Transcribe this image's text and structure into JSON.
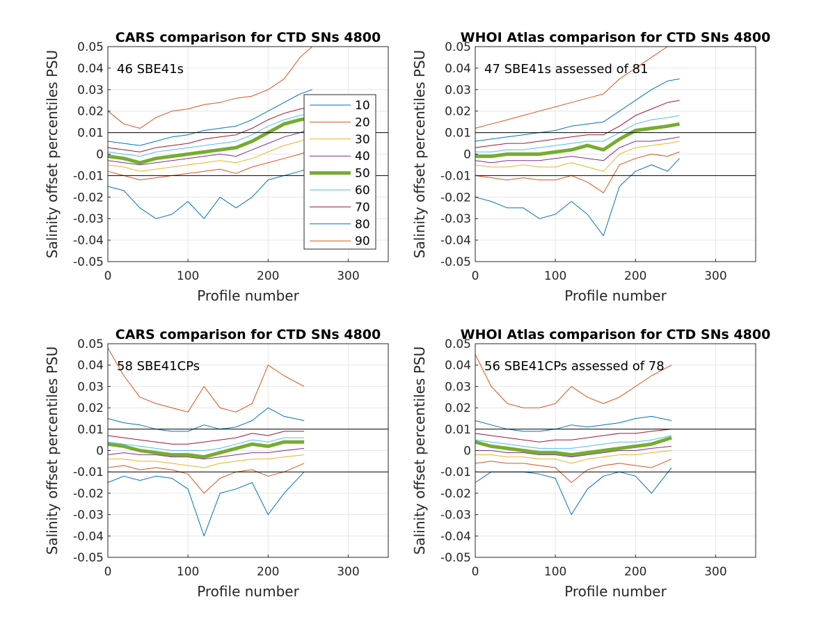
{
  "figure": {
    "colors": {
      "p10": "#0072BD",
      "p20": "#D95319",
      "p30": "#EDB120",
      "p40": "#7E2F8E",
      "p50": "#77AC30",
      "p60": "#4DBEEE",
      "p70": "#A2142F",
      "p80": "#0072BD",
      "p90": "#D95319",
      "grid": "#e6e6e6",
      "axis": "#262626",
      "ref_line": "#000000"
    }
  },
  "chart_data": [
    {
      "type": "line",
      "title": "CARS comparison for CTD SNs 4800",
      "xlabel": "Profile number",
      "ylabel": "Salinity offset percentiles PSU",
      "xlim": [
        0,
        350
      ],
      "ylim": [
        -0.05,
        0.05
      ],
      "xticks": [
        "0",
        "100",
        "200",
        "300"
      ],
      "yticks": [
        "-0.05",
        "-0.04",
        "-0.03",
        "-0.02",
        "-0.01",
        "0",
        "0.01",
        "0.02",
        "0.03",
        "0.04",
        "0.05"
      ],
      "annotation": "46 SBE41s",
      "grid": true,
      "reference_lines": [
        0.01,
        -0.01
      ],
      "legend": {
        "placement": "right",
        "entries": [
          "10",
          "20",
          "30",
          "40",
          "50",
          "60",
          "70",
          "80",
          "90"
        ]
      },
      "x": [
        0,
        20,
        40,
        60,
        80,
        100,
        120,
        140,
        160,
        180,
        200,
        220,
        240,
        255
      ],
      "series": [
        {
          "name": "10",
          "values": [
            -0.015,
            -0.017,
            -0.025,
            -0.03,
            -0.028,
            -0.022,
            -0.03,
            -0.02,
            -0.025,
            -0.02,
            -0.012,
            -0.01,
            -0.008,
            -0.006
          ]
        },
        {
          "name": "20",
          "values": [
            -0.008,
            -0.01,
            -0.012,
            -0.011,
            -0.01,
            -0.009,
            -0.008,
            -0.007,
            -0.009,
            -0.006,
            -0.004,
            -0.002,
            0.0,
            0.002
          ]
        },
        {
          "name": "30",
          "values": [
            -0.005,
            -0.006,
            -0.008,
            -0.007,
            -0.006,
            -0.005,
            -0.004,
            -0.003,
            -0.004,
            -0.002,
            0.001,
            0.004,
            0.006,
            0.008
          ]
        },
        {
          "name": "40",
          "values": [
            -0.003,
            -0.004,
            -0.005,
            -0.004,
            -0.003,
            -0.002,
            -0.001,
            0.0,
            -0.001,
            0.002,
            0.005,
            0.008,
            0.01,
            0.012
          ]
        },
        {
          "name": "50",
          "values": [
            -0.001,
            -0.002,
            -0.004,
            -0.002,
            -0.001,
            0.0,
            0.001,
            0.002,
            0.003,
            0.006,
            0.01,
            0.014,
            0.016,
            0.017
          ]
        },
        {
          "name": "60",
          "values": [
            0.001,
            0.0,
            -0.001,
            0.001,
            0.002,
            0.003,
            0.004,
            0.005,
            0.006,
            0.009,
            0.013,
            0.016,
            0.018,
            0.019
          ]
        },
        {
          "name": "70",
          "values": [
            0.003,
            0.002,
            0.001,
            0.003,
            0.004,
            0.005,
            0.007,
            0.008,
            0.009,
            0.012,
            0.016,
            0.019,
            0.021,
            0.022
          ]
        },
        {
          "name": "80",
          "values": [
            0.006,
            0.005,
            0.004,
            0.006,
            0.008,
            0.009,
            0.011,
            0.012,
            0.013,
            0.016,
            0.02,
            0.024,
            0.028,
            0.03
          ]
        },
        {
          "name": "90",
          "values": [
            0.02,
            0.014,
            0.012,
            0.017,
            0.02,
            0.021,
            0.023,
            0.024,
            0.026,
            0.027,
            0.03,
            0.035,
            0.045,
            0.05
          ]
        }
      ]
    },
    {
      "type": "line",
      "title": "WHOI Atlas comparison for CTD SNs 4800",
      "xlabel": "Profile number",
      "ylabel": "Salinity offset percentiles PSU",
      "xlim": [
        0,
        350
      ],
      "ylim": [
        -0.05,
        0.05
      ],
      "xticks": [
        "0",
        "100",
        "200",
        "300"
      ],
      "yticks": [
        "-0.05",
        "-0.04",
        "-0.03",
        "-0.02",
        "-0.01",
        "0",
        "0.01",
        "0.02",
        "0.03",
        "0.04",
        "0.05"
      ],
      "annotation": "47 SBE41s assessed of 81",
      "grid": true,
      "reference_lines": [
        0.01,
        -0.01
      ],
      "x": [
        0,
        20,
        40,
        60,
        80,
        100,
        120,
        140,
        160,
        180,
        200,
        220,
        240,
        255
      ],
      "series": [
        {
          "name": "10",
          "values": [
            -0.02,
            -0.022,
            -0.025,
            -0.025,
            -0.03,
            -0.028,
            -0.022,
            -0.028,
            -0.038,
            -0.015,
            -0.008,
            -0.005,
            -0.008,
            -0.002
          ]
        },
        {
          "name": "20",
          "values": [
            -0.01,
            -0.011,
            -0.012,
            -0.011,
            -0.012,
            -0.012,
            -0.01,
            -0.013,
            -0.018,
            -0.005,
            -0.002,
            0.0,
            -0.001,
            0.001
          ]
        },
        {
          "name": "30",
          "values": [
            -0.005,
            -0.006,
            -0.006,
            -0.005,
            -0.006,
            -0.006,
            -0.004,
            -0.006,
            -0.008,
            0.0,
            0.003,
            0.004,
            0.005,
            0.006
          ]
        },
        {
          "name": "40",
          "values": [
            -0.003,
            -0.004,
            -0.003,
            -0.003,
            -0.003,
            -0.002,
            -0.001,
            -0.002,
            -0.003,
            0.003,
            0.006,
            0.006,
            0.007,
            0.008
          ]
        },
        {
          "name": "50",
          "values": [
            -0.001,
            -0.001,
            0.0,
            0.0,
            0.0,
            0.001,
            0.002,
            0.004,
            0.002,
            0.007,
            0.011,
            0.012,
            0.013,
            0.014
          ]
        },
        {
          "name": "60",
          "values": [
            0.001,
            0.001,
            0.002,
            0.002,
            0.003,
            0.004,
            0.005,
            0.006,
            0.006,
            0.01,
            0.014,
            0.016,
            0.017,
            0.018
          ]
        },
        {
          "name": "70",
          "values": [
            0.003,
            0.004,
            0.005,
            0.005,
            0.006,
            0.007,
            0.008,
            0.009,
            0.009,
            0.013,
            0.018,
            0.021,
            0.024,
            0.025
          ]
        },
        {
          "name": "80",
          "values": [
            0.006,
            0.007,
            0.008,
            0.009,
            0.01,
            0.011,
            0.013,
            0.014,
            0.015,
            0.02,
            0.025,
            0.03,
            0.034,
            0.035
          ]
        },
        {
          "name": "90",
          "values": [
            0.012,
            0.014,
            0.016,
            0.018,
            0.02,
            0.022,
            0.024,
            0.026,
            0.028,
            0.035,
            0.04,
            0.045,
            0.05,
            0.05
          ]
        }
      ]
    },
    {
      "type": "line",
      "title": "CARS comparison for CTD SNs 4800",
      "xlabel": "Profile number",
      "ylabel": "Salinity offset percentiles PSU",
      "xlim": [
        0,
        350
      ],
      "ylim": [
        -0.05,
        0.05
      ],
      "xticks": [
        "0",
        "100",
        "200",
        "300"
      ],
      "yticks": [
        "-0.05",
        "-0.04",
        "-0.03",
        "-0.02",
        "-0.01",
        "0",
        "0.01",
        "0.02",
        "0.03",
        "0.04",
        "0.05"
      ],
      "annotation": "58 SBE41CPs",
      "grid": true,
      "reference_lines": [
        0.01,
        -0.01
      ],
      "x": [
        0,
        20,
        40,
        60,
        80,
        100,
        120,
        140,
        160,
        180,
        200,
        220,
        245
      ],
      "series": [
        {
          "name": "10",
          "values": [
            -0.015,
            -0.012,
            -0.014,
            -0.012,
            -0.013,
            -0.018,
            -0.04,
            -0.02,
            -0.018,
            -0.015,
            -0.03,
            -0.02,
            -0.01
          ]
        },
        {
          "name": "20",
          "values": [
            -0.008,
            -0.007,
            -0.009,
            -0.008,
            -0.009,
            -0.011,
            -0.02,
            -0.013,
            -0.01,
            -0.009,
            -0.012,
            -0.01,
            -0.006
          ]
        },
        {
          "name": "30",
          "values": [
            -0.004,
            -0.004,
            -0.005,
            -0.005,
            -0.006,
            -0.007,
            -0.008,
            -0.006,
            -0.005,
            -0.004,
            -0.004,
            -0.003,
            -0.002
          ]
        },
        {
          "name": "40",
          "values": [
            -0.002,
            -0.001,
            -0.002,
            -0.002,
            -0.003,
            -0.003,
            -0.004,
            -0.003,
            -0.002,
            -0.001,
            -0.001,
            0.0,
            0.001
          ]
        },
        {
          "name": "50",
          "values": [
            0.003,
            0.002,
            0.0,
            -0.001,
            -0.002,
            -0.002,
            -0.003,
            -0.001,
            0.001,
            0.003,
            0.002,
            0.004,
            0.004
          ]
        },
        {
          "name": "60",
          "values": [
            0.004,
            0.003,
            0.002,
            0.001,
            0.0,
            0.0,
            0.0,
            0.001,
            0.003,
            0.005,
            0.004,
            0.006,
            0.006
          ]
        },
        {
          "name": "70",
          "values": [
            0.007,
            0.006,
            0.005,
            0.004,
            0.003,
            0.003,
            0.004,
            0.005,
            0.006,
            0.008,
            0.007,
            0.009,
            0.009
          ]
        },
        {
          "name": "80",
          "values": [
            0.015,
            0.013,
            0.012,
            0.01,
            0.009,
            0.009,
            0.012,
            0.01,
            0.011,
            0.014,
            0.02,
            0.016,
            0.014
          ]
        },
        {
          "name": "90",
          "values": [
            0.048,
            0.035,
            0.025,
            0.022,
            0.02,
            0.018,
            0.03,
            0.02,
            0.018,
            0.022,
            0.04,
            0.035,
            0.03
          ]
        }
      ]
    },
    {
      "type": "line",
      "title": "WHOI Atlas comparison for CTD SNs 4800",
      "xlabel": "Profile number",
      "ylabel": "Salinity offset percentiles PSU",
      "xlim": [
        0,
        350
      ],
      "ylim": [
        -0.05,
        0.05
      ],
      "xticks": [
        "0",
        "100",
        "200",
        "300"
      ],
      "yticks": [
        "-0.05",
        "-0.04",
        "-0.03",
        "-0.02",
        "-0.01",
        "0",
        "0.01",
        "0.02",
        "0.03",
        "0.04",
        "0.05"
      ],
      "annotation": "56 SBE41CPs assessed of 78",
      "grid": true,
      "reference_lines": [
        0.01,
        -0.01
      ],
      "x": [
        0,
        20,
        40,
        60,
        80,
        100,
        120,
        140,
        160,
        180,
        200,
        220,
        245
      ],
      "series": [
        {
          "name": "10",
          "values": [
            -0.015,
            -0.01,
            -0.01,
            -0.01,
            -0.011,
            -0.013,
            -0.03,
            -0.018,
            -0.012,
            -0.01,
            -0.012,
            -0.02,
            -0.008
          ]
        },
        {
          "name": "20",
          "values": [
            -0.006,
            -0.005,
            -0.006,
            -0.006,
            -0.007,
            -0.008,
            -0.015,
            -0.009,
            -0.007,
            -0.006,
            -0.007,
            -0.008,
            -0.004
          ]
        },
        {
          "name": "30",
          "values": [
            -0.002,
            -0.002,
            -0.003,
            -0.003,
            -0.004,
            -0.004,
            -0.006,
            -0.004,
            -0.003,
            -0.002,
            -0.002,
            -0.001,
            0.0
          ]
        },
        {
          "name": "40",
          "values": [
            0.0,
            0.0,
            -0.001,
            -0.001,
            -0.002,
            -0.002,
            -0.003,
            -0.002,
            -0.001,
            0.0,
            0.0,
            0.001,
            0.002
          ]
        },
        {
          "name": "50",
          "values": [
            0.004,
            0.002,
            0.001,
            0.0,
            -0.001,
            -0.001,
            -0.002,
            -0.001,
            0.0,
            0.001,
            0.002,
            0.003,
            0.006
          ]
        },
        {
          "name": "60",
          "values": [
            0.005,
            0.004,
            0.003,
            0.002,
            0.001,
            0.001,
            0.001,
            0.002,
            0.003,
            0.004,
            0.004,
            0.005,
            0.007
          ]
        },
        {
          "name": "70",
          "values": [
            0.008,
            0.007,
            0.006,
            0.005,
            0.004,
            0.005,
            0.005,
            0.006,
            0.007,
            0.008,
            0.008,
            0.009,
            0.01
          ]
        },
        {
          "name": "80",
          "values": [
            0.014,
            0.012,
            0.01,
            0.009,
            0.009,
            0.01,
            0.012,
            0.011,
            0.012,
            0.013,
            0.015,
            0.016,
            0.014
          ]
        },
        {
          "name": "90",
          "values": [
            0.045,
            0.03,
            0.022,
            0.02,
            0.02,
            0.022,
            0.03,
            0.025,
            0.022,
            0.025,
            0.03,
            0.035,
            0.04
          ]
        }
      ]
    }
  ]
}
